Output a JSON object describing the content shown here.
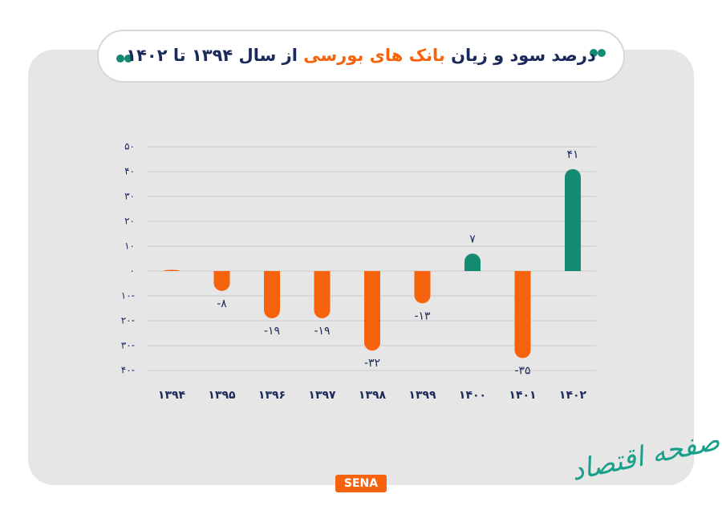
{
  "chart_data": {
    "type": "bar",
    "title_parts": [
      "درصد سود و زیان",
      "بانک های بورسی",
      "از سال ۱۳۹۴ تا ۱۴۰۲"
    ],
    "categories": [
      "۱۳۹۴",
      "۱۳۹۵",
      "۱۳۹۶",
      "۱۳۹۷",
      "۱۳۹۸",
      "۱۳۹۹",
      "۱۴۰۰",
      "۱۴۰۱",
      "۱۴۰۲"
    ],
    "values": [
      0.5,
      -8,
      -19,
      -19,
      -32,
      -13,
      7,
      -35,
      41
    ],
    "value_labels": [
      null,
      "-۸",
      "-۱۹",
      "-۱۹",
      "-۳۲",
      "-۱۳",
      "۷",
      "-۳۵",
      "۴۱"
    ],
    "colors": [
      "#f7630c",
      "#f7630c",
      "#f7630c",
      "#f7630c",
      "#f7630c",
      "#f7630c",
      "#138a72",
      "#f7630c",
      "#138a72"
    ],
    "ylim": [
      -40,
      50
    ],
    "yticks": [
      {
        "value": 50,
        "label": "۵۰"
      },
      {
        "value": 40,
        "label": "۴۰"
      },
      {
        "value": 30,
        "label": "۳۰"
      },
      {
        "value": 20,
        "label": "۲۰"
      },
      {
        "value": 10,
        "label": "۱۰"
      },
      {
        "value": 0,
        "label": "۰"
      },
      {
        "value": -10,
        "label": "۱۰-"
      },
      {
        "value": -20,
        "label": "۲۰-"
      },
      {
        "value": -30,
        "label": "۳۰-"
      },
      {
        "value": -40,
        "label": "۴۰-"
      }
    ],
    "grid": true,
    "logo": "SENA",
    "watermark": "صفحه اقتصاد"
  }
}
